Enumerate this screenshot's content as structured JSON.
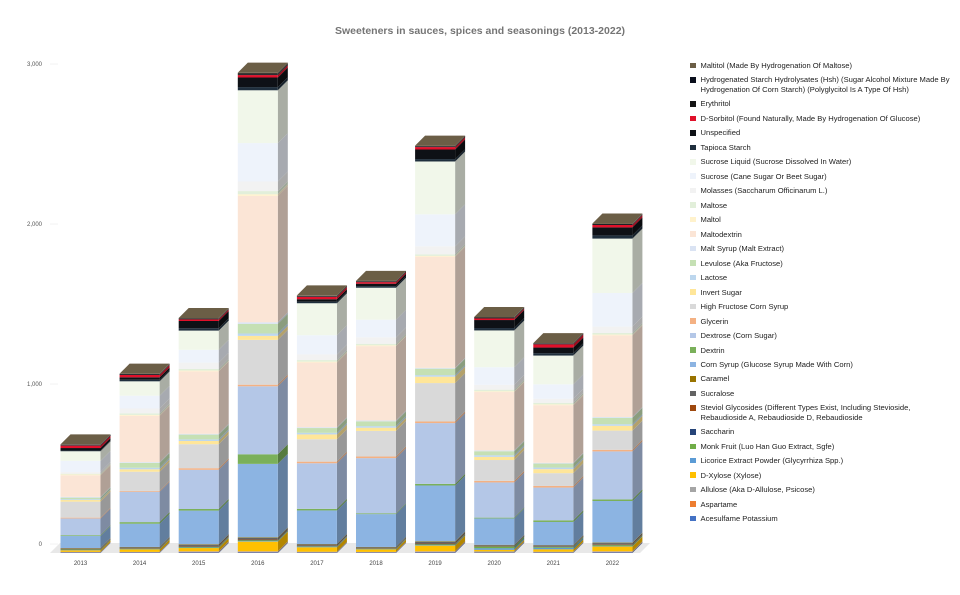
{
  "chart_data": {
    "type": "bar",
    "stacked": true,
    "title": "Sweeteners in sauces, spices and seasonings (2013-2022)",
    "xlabel": "",
    "ylabel": "",
    "ylim": [
      0,
      3000
    ],
    "yticks": [
      0,
      1000,
      2000,
      3000
    ],
    "ytick_labels": [
      "0",
      "1,000",
      "2,000",
      "3,000"
    ],
    "categories": [
      "2013",
      "2014",
      "2015",
      "2016",
      "2017",
      "2018",
      "2019",
      "2020",
      "2021",
      "2022"
    ],
    "legend_position": "right",
    "series": [
      {
        "name": "Acesulfame Potassium",
        "color": "#4472c4",
        "values": [
          3,
          3,
          5,
          5,
          3,
          3,
          5,
          3,
          3,
          5
        ]
      },
      {
        "name": "Aspartame",
        "color": "#ed7d31",
        "values": [
          2,
          2,
          3,
          3,
          2,
          2,
          3,
          2,
          2,
          3
        ]
      },
      {
        "name": "Allulose (Aka D-Allulose, Psicose)",
        "color": "#a5a5a5",
        "values": [
          2,
          2,
          3,
          3,
          3,
          2,
          3,
          5,
          3,
          3
        ]
      },
      {
        "name": "D-Xylose (Xylose)",
        "color": "#ffc000",
        "values": [
          10,
          15,
          20,
          60,
          28,
          15,
          35,
          10,
          15,
          30
        ]
      },
      {
        "name": "Licorice Extract Powder (Glycyrrhiza Spp.)",
        "color": "#5b9bd5",
        "values": [
          2,
          2,
          3,
          3,
          3,
          2,
          3,
          10,
          10,
          3
        ]
      },
      {
        "name": "Monk Fruit (Luo Han Guo Extract, Sgfe)",
        "color": "#70ad47",
        "values": [
          3,
          3,
          5,
          5,
          3,
          3,
          5,
          10,
          5,
          5
        ]
      },
      {
        "name": "Saccharin",
        "color": "#264478",
        "values": [
          2,
          2,
          2,
          2,
          2,
          2,
          2,
          2,
          2,
          2
        ]
      },
      {
        "name": "Steviol Glycosides (Different Types Exist, Including Stevioside, Rebaudioside A, Rebaudioside D, Rebaudioside",
        "color": "#9e480e",
        "values": [
          2,
          2,
          3,
          3,
          2,
          2,
          3,
          2,
          2,
          3
        ]
      },
      {
        "name": "Sucralose",
        "color": "#636363",
        "values": [
          3,
          5,
          8,
          10,
          8,
          5,
          10,
          5,
          5,
          8
        ]
      },
      {
        "name": "Caramel",
        "color": "#997300",
        "values": [
          2,
          2,
          3,
          3,
          2,
          2,
          3,
          2,
          2,
          3
        ]
      },
      {
        "name": "Corn Syrup (Glucose Syrup Made With Corn)",
        "color": "#8cb4e2",
        "values": [
          75,
          145,
          210,
          460,
          210,
          205,
          350,
          165,
          145,
          260
        ]
      },
      {
        "name": "Dextrin",
        "color": "#7ab05a",
        "values": [
          5,
          10,
          10,
          60,
          10,
          5,
          10,
          5,
          10,
          10
        ]
      },
      {
        "name": "Dextrose (Corn Sugar)",
        "color": "#b4c7e7",
        "values": [
          105,
          190,
          245,
          425,
          285,
          345,
          380,
          220,
          205,
          300
        ]
      },
      {
        "name": "Glycerin",
        "color": "#f4b183",
        "values": [
          5,
          5,
          10,
          10,
          10,
          10,
          10,
          10,
          10,
          10
        ]
      },
      {
        "name": "High Fructose Corn Syrup",
        "color": "#d9d9d9",
        "values": [
          100,
          120,
          150,
          280,
          140,
          160,
          240,
          130,
          80,
          120
        ]
      },
      {
        "name": "Invert Sugar",
        "color": "#ffe699",
        "values": [
          10,
          15,
          20,
          25,
          30,
          20,
          40,
          20,
          25,
          30
        ]
      },
      {
        "name": "Lactose",
        "color": "#bdd7ee",
        "values": [
          5,
          10,
          10,
          15,
          10,
          10,
          10,
          10,
          10,
          10
        ]
      },
      {
        "name": "Levulose (Aka Fructose)",
        "color": "#c5e0b4",
        "values": [
          10,
          30,
          30,
          60,
          30,
          30,
          40,
          25,
          25,
          40
        ]
      },
      {
        "name": "Malt Syrup (Malt Extract)",
        "color": "#dae3f3",
        "values": [
          5,
          5,
          5,
          10,
          5,
          5,
          5,
          5,
          5,
          5
        ]
      },
      {
        "name": "Maltodextrin",
        "color": "#fbe5d6",
        "values": [
          135,
          290,
          390,
          790,
          405,
          465,
          695,
          365,
          360,
          510
        ]
      },
      {
        "name": "Maltol",
        "color": "#fff2cc",
        "values": [
          5,
          5,
          5,
          10,
          5,
          5,
          5,
          5,
          5,
          5
        ]
      },
      {
        "name": "Maltose",
        "color": "#e2efda",
        "values": [
          5,
          10,
          10,
          20,
          10,
          10,
          10,
          10,
          10,
          10
        ]
      },
      {
        "name": "Molasses (Saccharum Officinarum L.)",
        "color": "#f2f2f2",
        "values": [
          10,
          30,
          40,
          60,
          35,
          40,
          50,
          30,
          25,
          40
        ]
      },
      {
        "name": "Sucrose (Cane Sugar Or Beet Sugar)",
        "color": "#eef3fb",
        "values": [
          70,
          80,
          80,
          240,
          120,
          110,
          200,
          110,
          90,
          210
        ]
      },
      {
        "name": "Sucrose Liquid (Sucrose Dissolved In Water)",
        "color": "#f1f7ea",
        "values": [
          60,
          90,
          120,
          330,
          200,
          200,
          330,
          230,
          180,
          340
        ]
      },
      {
        "name": "Tapioca Starch",
        "color": "#1f2f3d",
        "values": [
          5,
          10,
          15,
          20,
          10,
          10,
          15,
          15,
          15,
          20
        ]
      },
      {
        "name": "Unspecified",
        "color": "#0e1116",
        "values": [
          15,
          15,
          45,
          60,
          15,
          15,
          60,
          50,
          35,
          50
        ]
      },
      {
        "name": "D-Sorbitol (Found Naturally, Made By Hydrogenation Of Glucose)",
        "color": "#e0102a",
        "values": [
          15,
          15,
          10,
          15,
          15,
          10,
          15,
          10,
          20,
          15
        ]
      },
      {
        "name": "Erythritol",
        "color": "#141414",
        "values": [
          3,
          3,
          3,
          5,
          3,
          3,
          3,
          3,
          3,
          3
        ]
      },
      {
        "name": "Hydrogenated Starch Hydrolysates (Hsh) (Sugar Alcohol Mixture Made By Hydrogenation Of Corn Starch) (Polyglycitol Is A Type Of Hsh)",
        "color": "#0a0f1c",
        "values": [
          3,
          3,
          3,
          5,
          3,
          3,
          3,
          3,
          3,
          3
        ]
      },
      {
        "name": "Maltitol (Made By Hydrogenation Of Maltose)",
        "color": "#6b5e46",
        "values": [
          2,
          2,
          3,
          5,
          3,
          2,
          3,
          3,
          2,
          3
        ]
      }
    ]
  }
}
